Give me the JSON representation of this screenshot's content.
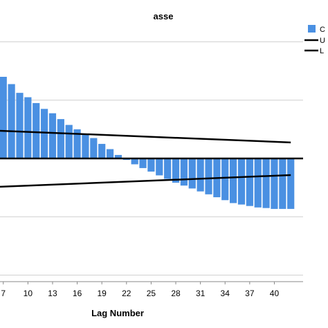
{
  "chart_data": {
    "type": "bar",
    "title": "asse",
    "xlabel": "Lag Number",
    "ylabel": "",
    "x_tick_labels": [
      "7",
      "10",
      "13",
      "16",
      "19",
      "22",
      "25",
      "28",
      "31",
      "34",
      "37",
      "40"
    ],
    "x_ticks": [
      7,
      10,
      13,
      16,
      19,
      22,
      25,
      28,
      31,
      34,
      37,
      40
    ],
    "xlim": [
      6.6,
      43.5
    ],
    "ylim": [
      -0.42,
      0.42
    ],
    "grid_y": [
      -0.4,
      -0.2,
      0.2,
      0.4
    ],
    "colors": {
      "bars": "#4a90e2",
      "limits": "#000000",
      "grid": "#cfcfcf"
    },
    "bar_series": {
      "name": "C",
      "lags": [
        7,
        8,
        9,
        10,
        11,
        12,
        13,
        14,
        15,
        16,
        17,
        18,
        19,
        20,
        21,
        22,
        23,
        24,
        25,
        26,
        27,
        28,
        29,
        30,
        31,
        32,
        33,
        34,
        35,
        36,
        37,
        38,
        39,
        40,
        41,
        42
      ],
      "values": [
        0.28,
        0.255,
        0.225,
        0.21,
        0.19,
        0.17,
        0.155,
        0.135,
        0.115,
        0.1,
        0.085,
        0.07,
        0.05,
        0.032,
        0.012,
        -0.005,
        -0.02,
        -0.033,
        -0.045,
        -0.058,
        -0.07,
        -0.083,
        -0.093,
        -0.103,
        -0.113,
        -0.123,
        -0.133,
        -0.143,
        -0.153,
        -0.158,
        -0.163,
        -0.168,
        -0.17,
        -0.173,
        -0.173,
        -0.173
      ]
    },
    "upper_limit": {
      "name": "U",
      "x": [
        6.6,
        42
      ],
      "y": [
        0.095,
        0.055
      ]
    },
    "lower_limit": {
      "name": "L",
      "x": [
        6.6,
        42
      ],
      "y": [
        -0.097,
        -0.057
      ]
    },
    "legend": {
      "position": "top-right",
      "entries": [
        "C",
        "U",
        "L"
      ]
    }
  }
}
